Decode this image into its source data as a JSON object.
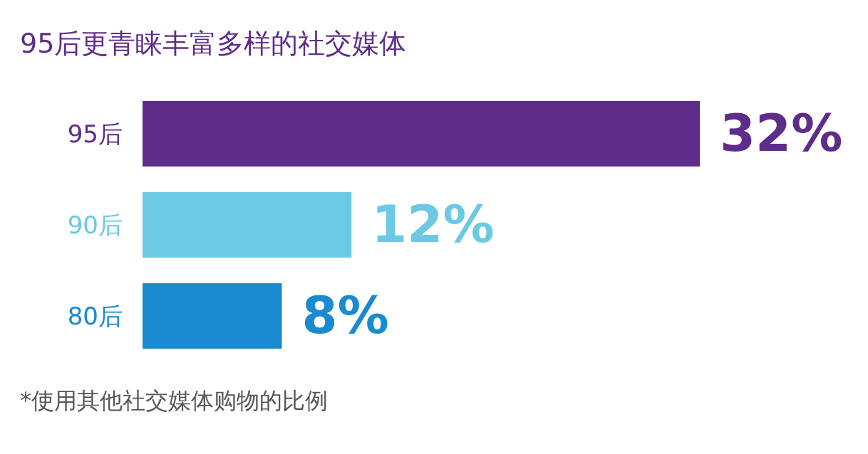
{
  "chart_data": {
    "type": "bar",
    "orientation": "horizontal",
    "title": "95后更青睐丰富多样的社交媒体",
    "categories": [
      "95后",
      "90后",
      "80后"
    ],
    "values": [
      32,
      12,
      8
    ],
    "colors": [
      "#5e2d8a",
      "#6cc9e3",
      "#1a8bd0"
    ],
    "value_labels": [
      "32%",
      "12%",
      "8%"
    ],
    "annotations": [
      "*使用其他社交媒体购物的比例"
    ]
  }
}
